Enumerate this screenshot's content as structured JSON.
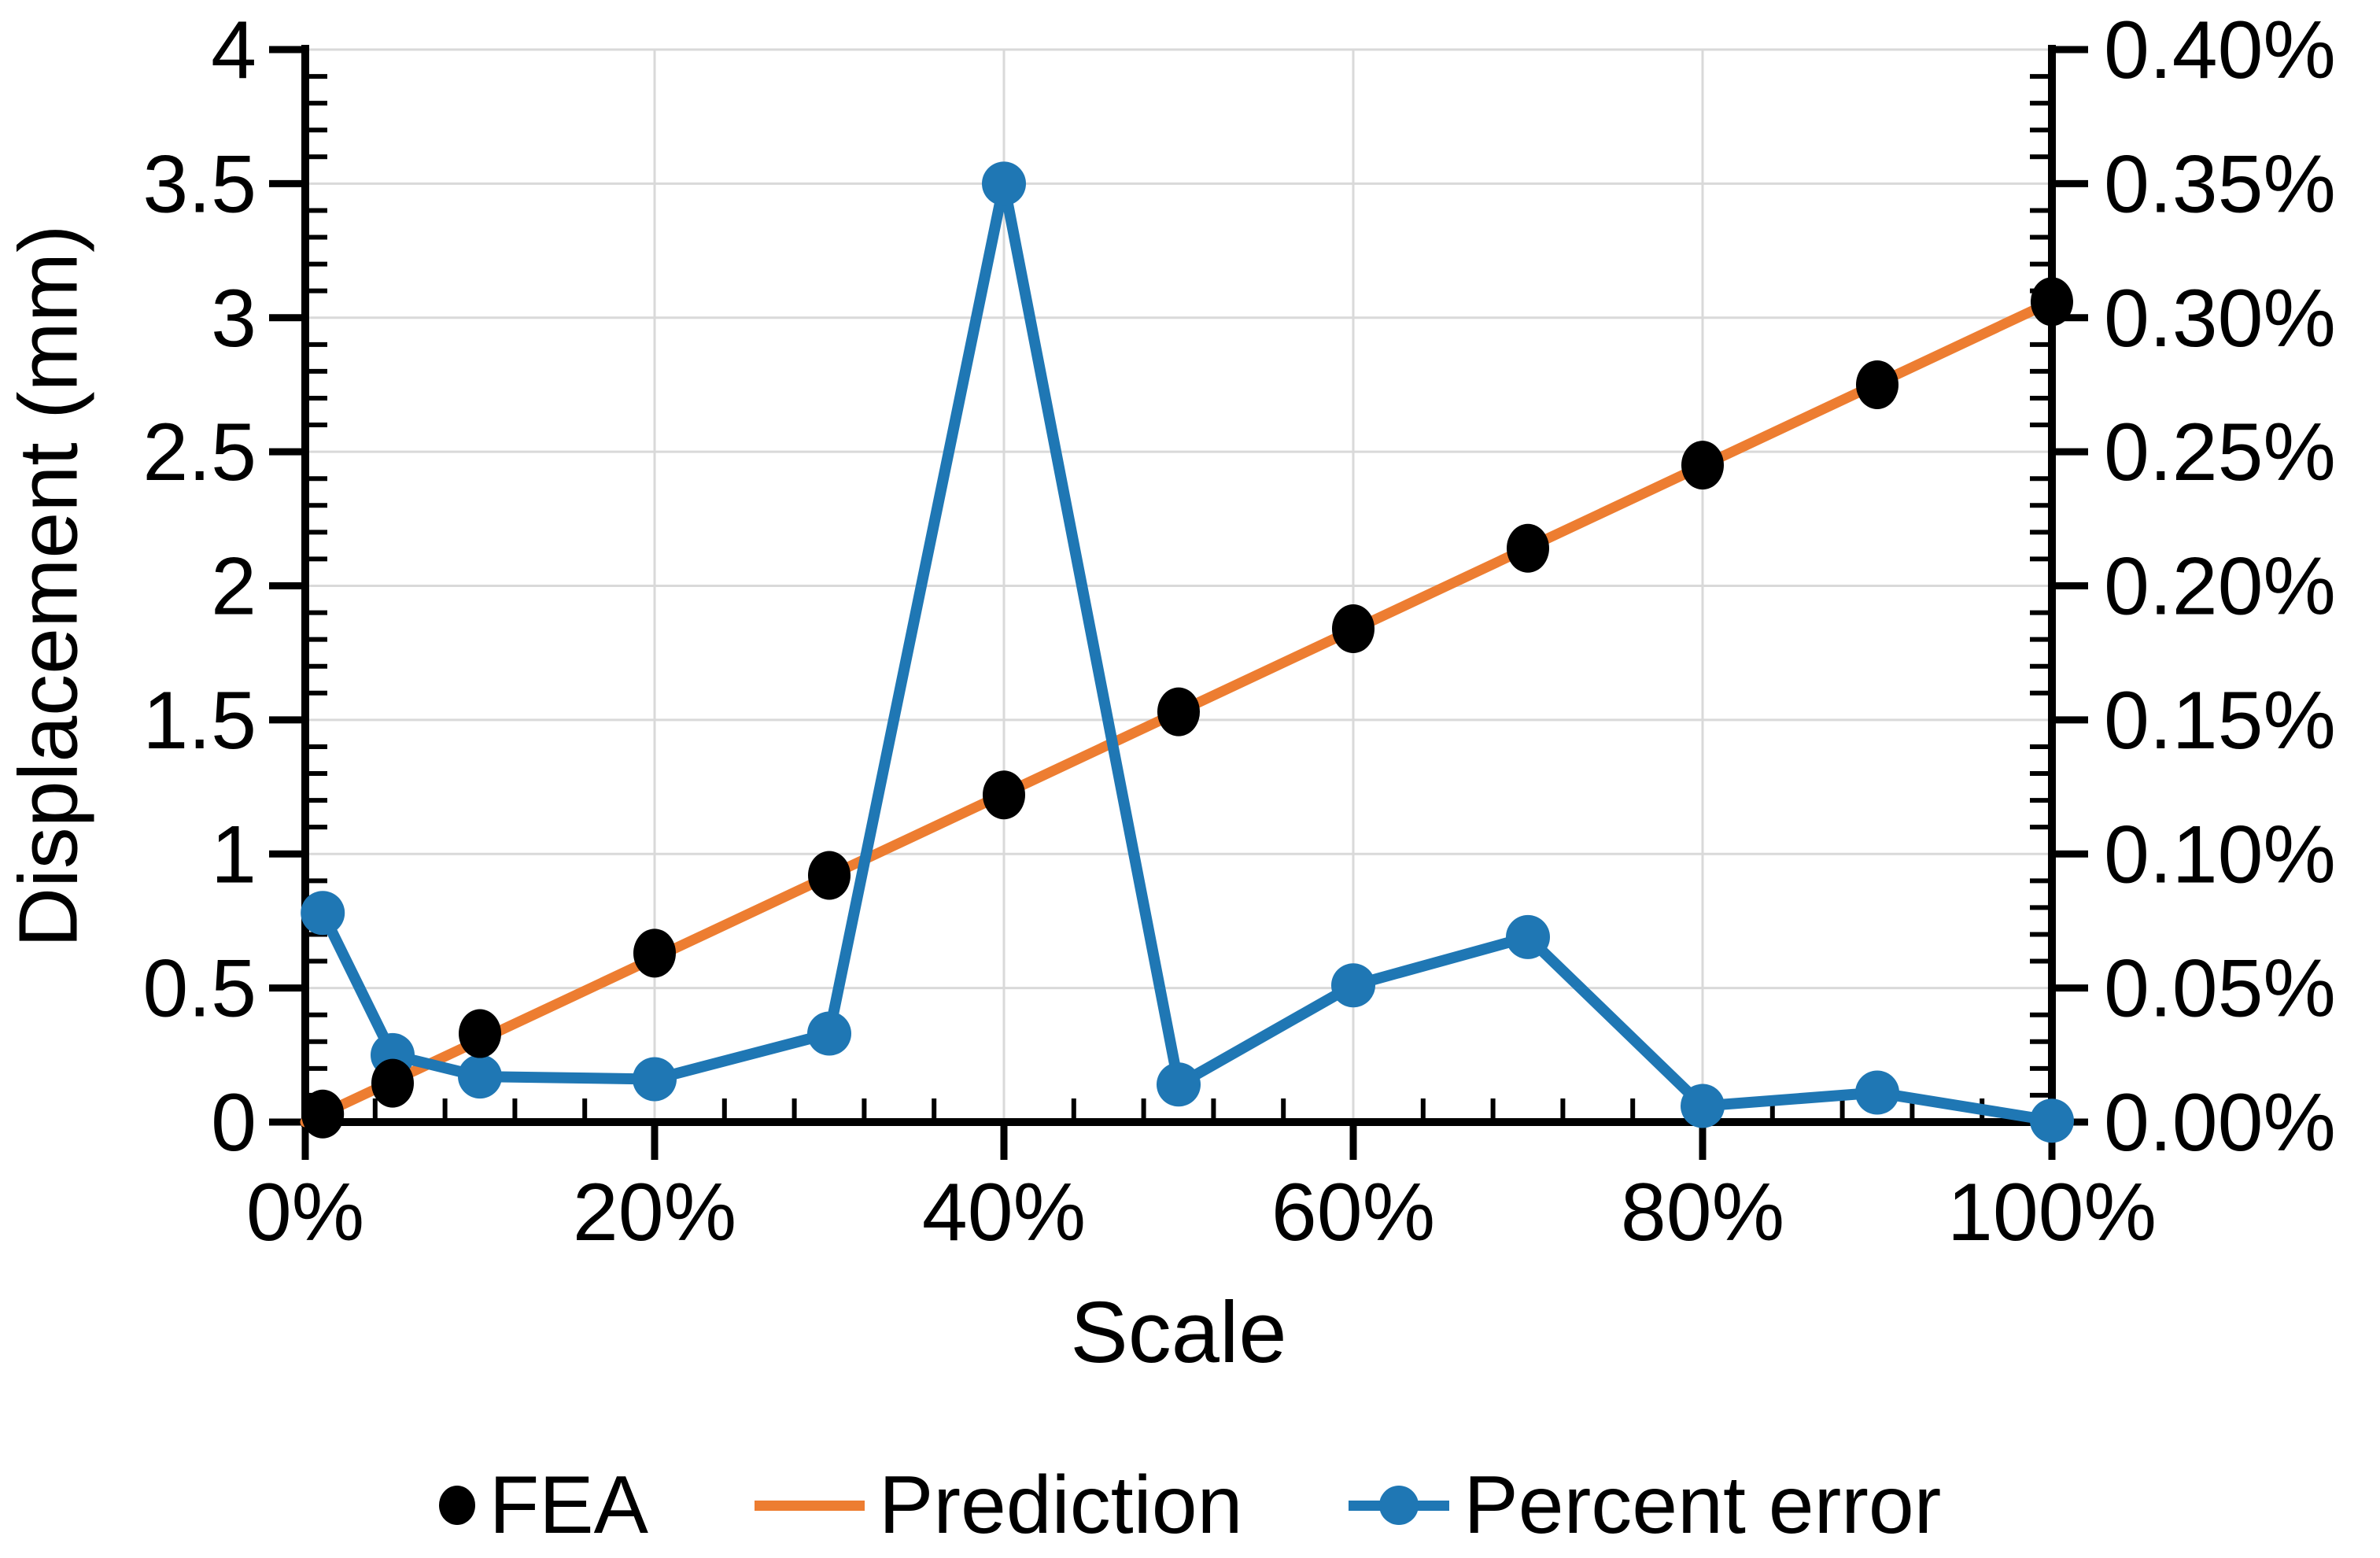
{
  "figure": {
    "background": "#ffffff"
  },
  "chart_data": {
    "type": "line",
    "title": "",
    "xlabel": "Scale",
    "ylabel_left": "Displacement (mm)",
    "ylabel_right": "",
    "x_axis": {
      "range": [
        0,
        100
      ],
      "major_ticks": [
        0,
        20,
        40,
        60,
        80,
        100
      ],
      "major_labels": [
        "0%",
        "20%",
        "40%",
        "60%",
        "80%",
        "100%"
      ],
      "minor_step": 4
    },
    "y_axis_left": {
      "range": [
        0,
        4
      ],
      "major_step": 0.5,
      "minor_step": 0.1,
      "major_labels": [
        "0",
        "0.5",
        "1",
        "1.5",
        "2",
        "2.5",
        "3",
        "3.5",
        "4"
      ]
    },
    "y_axis_right": {
      "range": [
        0,
        0.4
      ],
      "major_step": 0.05,
      "minor_step": 0.01,
      "major_labels": [
        "0.00%",
        "0.05%",
        "0.10%",
        "0.15%",
        "0.20%",
        "0.25%",
        "0.30%",
        "0.35%",
        "0.40%"
      ]
    },
    "grid": {
      "show": true,
      "color": "#d9d9d9",
      "horizontal_step": 0.5,
      "vertical_step": 20
    },
    "series": [
      {
        "name": "FEA",
        "type": "scatter",
        "axis": "left",
        "color": "#000000",
        "x": [
          1,
          5,
          10,
          20,
          30,
          40,
          50,
          60,
          70,
          80,
          90,
          100
        ],
        "y": [
          0.03,
          0.145,
          0.33,
          0.63,
          0.92,
          1.22,
          1.53,
          1.84,
          2.14,
          2.45,
          2.75,
          3.06
        ]
      },
      {
        "name": "Prediction",
        "type": "line",
        "axis": "left",
        "color": "#ED7D31",
        "x": [
          0,
          100
        ],
        "y": [
          0,
          3.06
        ]
      },
      {
        "name": "Percent error",
        "type": "line+marker",
        "axis": "right",
        "color": "#1F77B4",
        "x": [
          1,
          5,
          10,
          20,
          30,
          40,
          50,
          60,
          70,
          80,
          90,
          100
        ],
        "y": [
          0.078,
          0.025,
          0.017,
          0.016,
          0.033,
          0.35,
          0.014,
          0.051,
          0.069,
          0.006,
          0.011,
          0.0005
        ]
      }
    ],
    "legend": {
      "position": "bottom",
      "entries": [
        "FEA",
        "Prediction",
        "Percent error"
      ]
    }
  }
}
